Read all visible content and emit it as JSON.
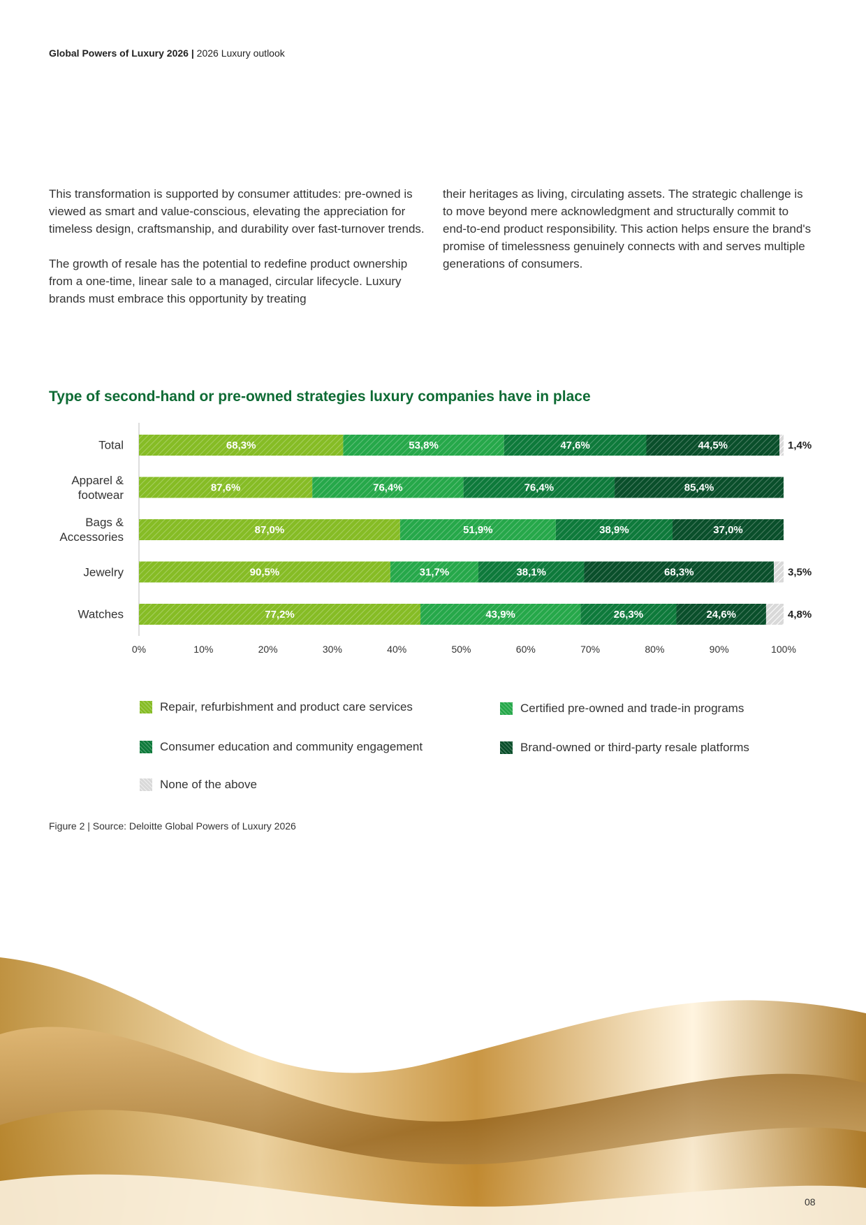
{
  "header": {
    "title": "Global Powers of Luxury 2026",
    "separator": "|",
    "subtitle": "2026 Luxury outlook"
  },
  "body": {
    "left": [
      "This transformation is supported by consumer attitudes: pre-owned is viewed as smart and value-conscious, elevating the appreciation for timeless design, craftsmanship, and durability over fast-turnover trends.",
      "The growth of resale has the potential to redefine product ownership from a one-time, linear sale to a managed, circular lifecycle. Luxury brands must embrace this opportunity by treating"
    ],
    "right": [
      "their heritages as living, circulating assets. The strategic challenge is to move beyond mere acknowledgment and structurally commit to end-to-end product responsibility. This action helps ensure the brand's promise of timelessness genuinely connects with and serves multiple generations of consumers."
    ]
  },
  "chart_data": {
    "type": "stacked100_barh",
    "title": "Type of second-hand or pre-owned strategies luxury companies have in place",
    "categories": [
      "Total",
      "Apparel & footwear",
      "Bags & Accessories",
      "Jewelry",
      "Watches"
    ],
    "series": [
      {
        "name": "Repair, refurbishment and product care services",
        "color": "#86bc25",
        "values": [
          68.3,
          87.6,
          87.0,
          90.5,
          77.2
        ],
        "value_labels": [
          "68,3%",
          "87,6%",
          "87,0%",
          "90,5%",
          "77,2%"
        ]
      },
      {
        "name": "Certified pre-owned and trade-in programs",
        "color": "#26a84a",
        "values": [
          53.8,
          76.4,
          51.9,
          31.7,
          43.9
        ],
        "value_labels": [
          "53,8%",
          "76,4%",
          "51,9%",
          "31,7%",
          "43,9%"
        ]
      },
      {
        "name": "Consumer education and community engagement",
        "color": "#0e7a3b",
        "values": [
          47.6,
          76.4,
          38.9,
          38.1,
          26.3
        ],
        "value_labels": [
          "47,6%",
          "76,4%",
          "38,9%",
          "38,1%",
          "26,3%"
        ]
      },
      {
        "name": "Brand-owned or third-party resale platforms",
        "color": "#0a4f2b",
        "values": [
          44.5,
          85.4,
          37.0,
          68.3,
          24.6
        ],
        "value_labels": [
          "44,5%",
          "85,4%",
          "37,0%",
          "68,3%",
          "24,6%"
        ]
      },
      {
        "name": "None of the above",
        "color": "#d9d9d9",
        "values": [
          1.4,
          null,
          null,
          3.5,
          4.8
        ],
        "value_labels": [
          "1,4%",
          null,
          null,
          "3,5%",
          "4,8%"
        ]
      }
    ],
    "xlim": [
      0,
      100
    ],
    "xticks": [
      {
        "value": 0,
        "label": "0%"
      },
      {
        "value": 10,
        "label": "10%"
      },
      {
        "value": 20,
        "label": "20%"
      },
      {
        "value": 30,
        "label": "30%"
      },
      {
        "value": 40,
        "label": "40%"
      },
      {
        "value": 50,
        "label": "50%"
      },
      {
        "value": 60,
        "label": "60%"
      },
      {
        "value": 70,
        "label": "70%"
      },
      {
        "value": 80,
        "label": "80%"
      },
      {
        "value": 90,
        "label": "90%"
      },
      {
        "value": 100,
        "label": "100%"
      }
    ],
    "source": "Figure 2 | Source: Deloitte Global Powers of Luxury 2026"
  },
  "page_number": "08"
}
